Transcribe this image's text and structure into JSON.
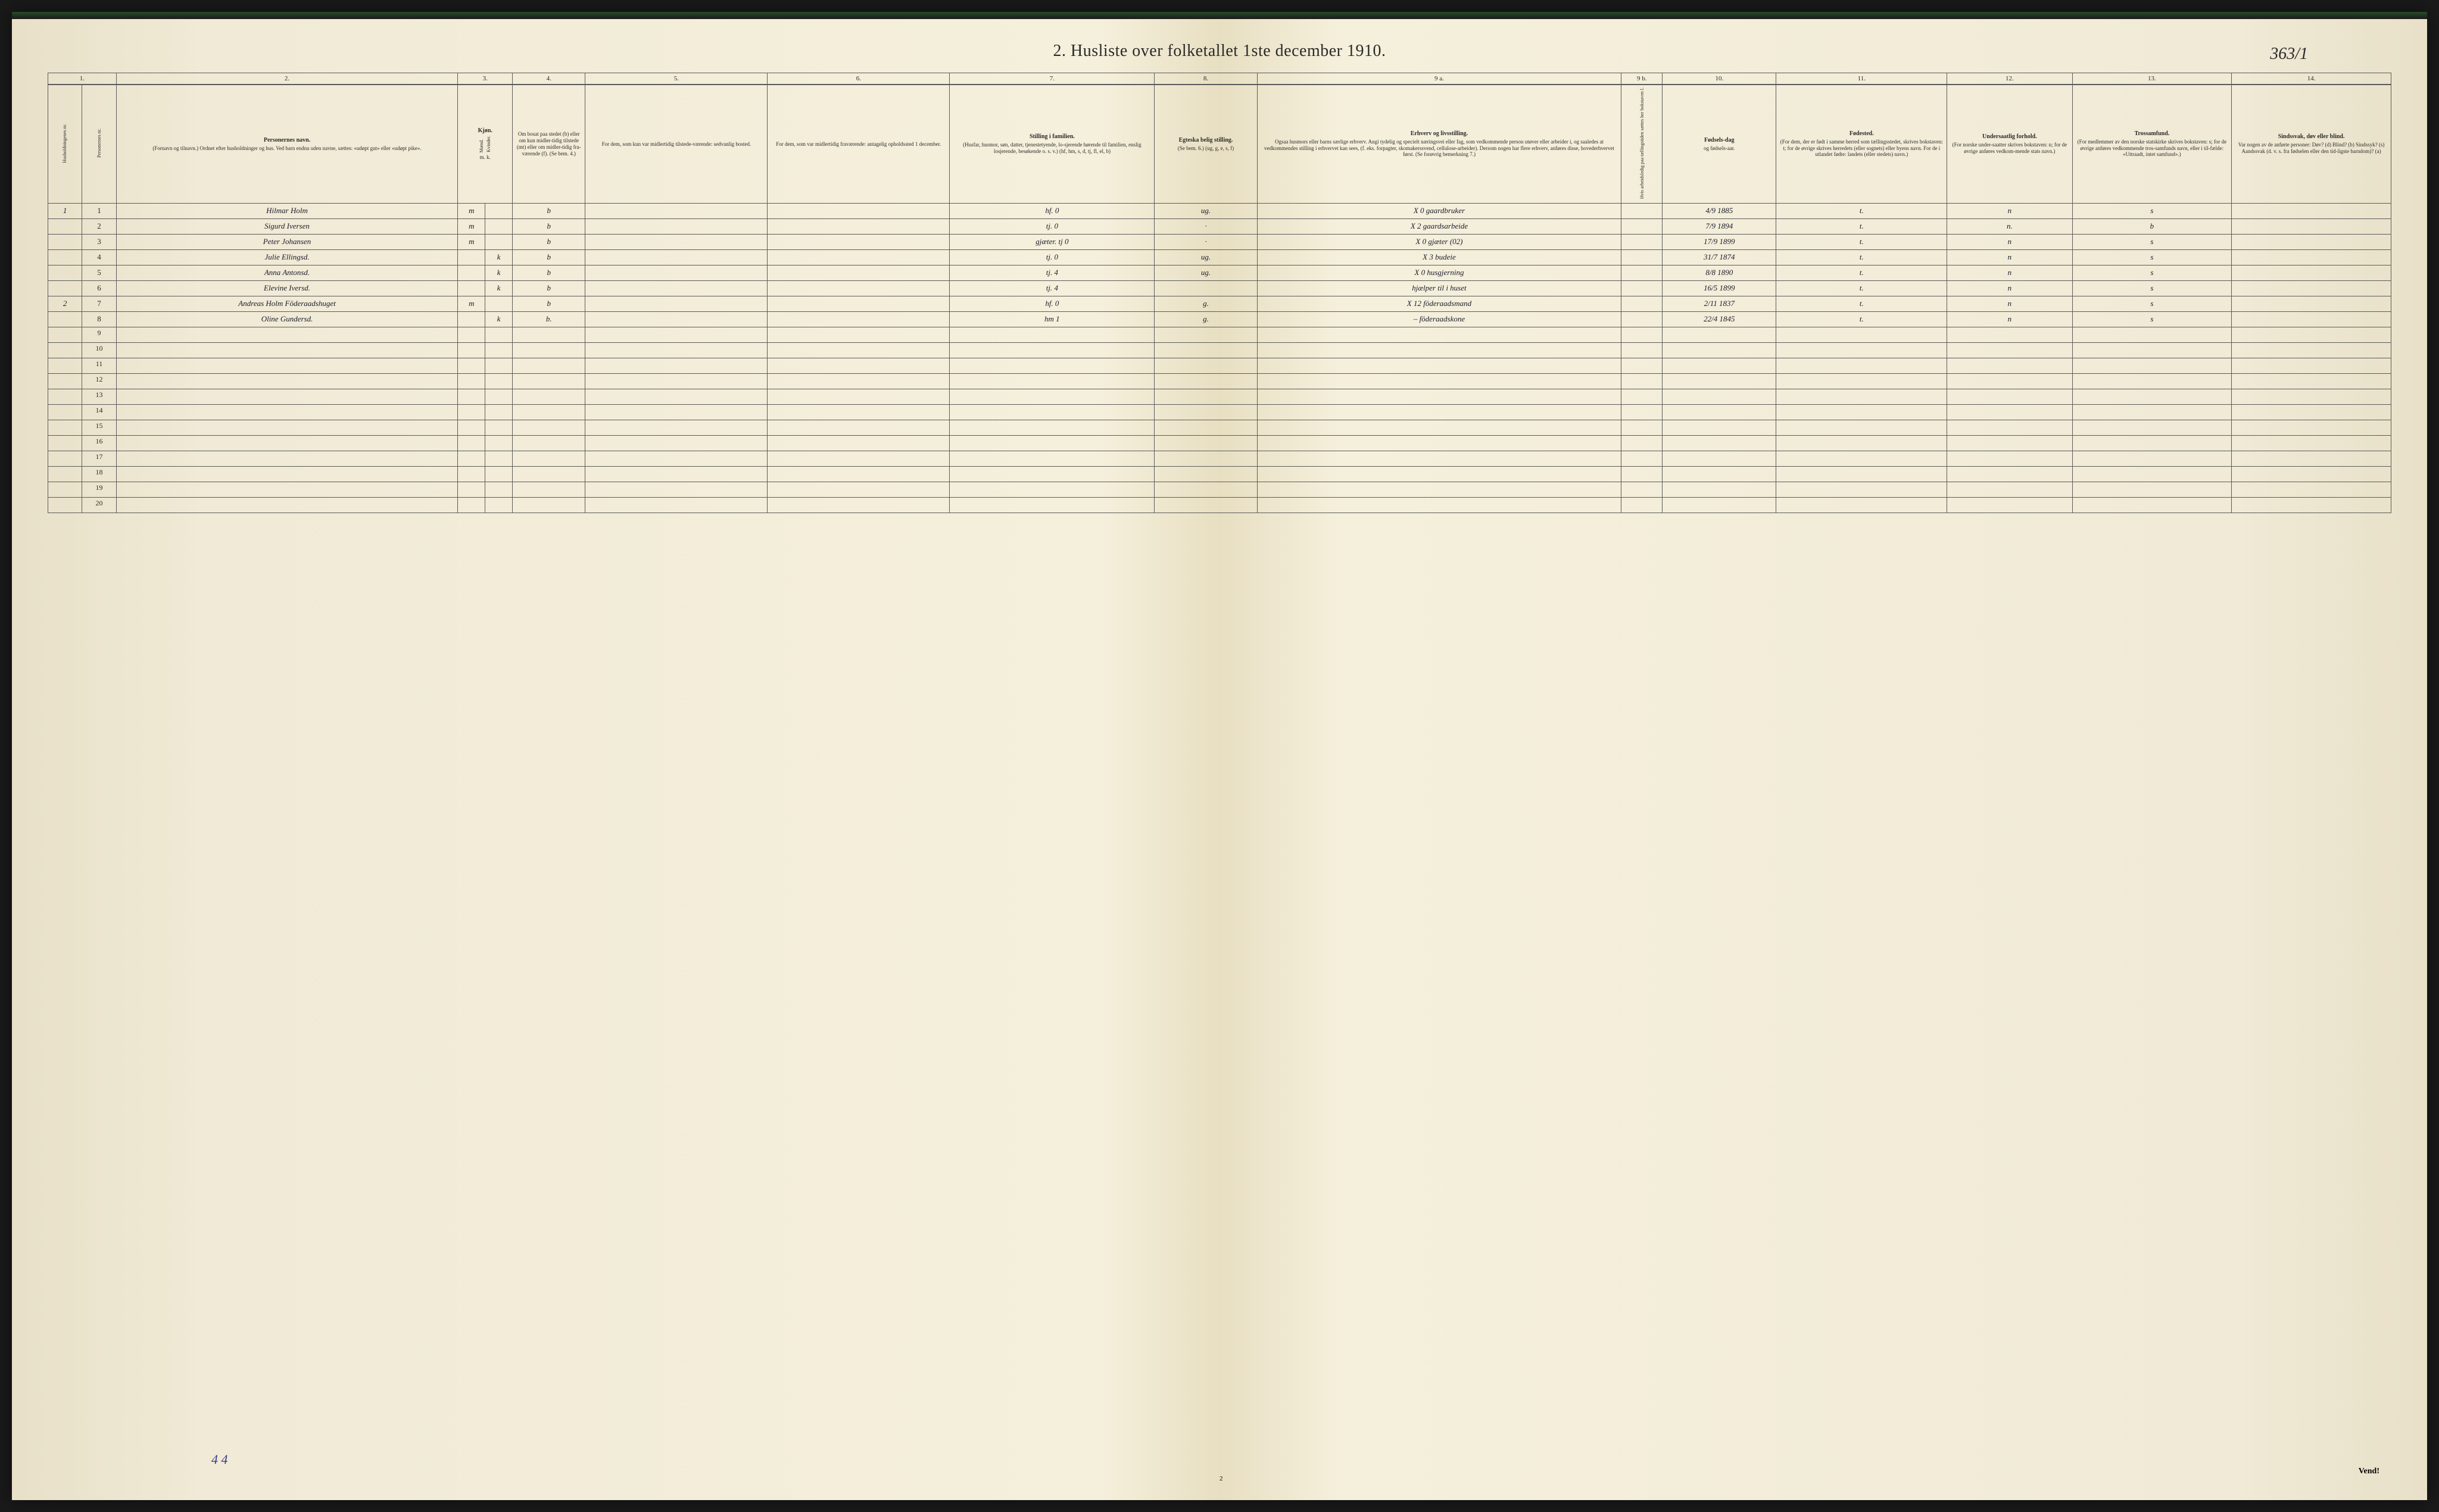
{
  "corner_note": "363/1",
  "title": "2.   Husliste over folketallet 1ste december 1910.",
  "col_numbers": [
    "1.",
    "",
    "2.",
    "3.",
    "4.",
    "5.",
    "6.",
    "7.",
    "8.",
    "9 a.",
    "9 b.",
    "10.",
    "11.",
    "12.",
    "13.",
    "14."
  ],
  "headers": {
    "c1": "Husholdningenes nr.",
    "c1b": "Personernes nr.",
    "c2_bold": "Personernes navn.",
    "c2": "(Fornavn og tilnavn.)\nOrdnet efter husholdninger og hus.\nVed barn endnu uden navne, sættes: «udøpt gut» eller «udøpt pike».",
    "c3_bold": "Kjøn.",
    "c3a": "Mænd.",
    "c3b": "Kvinder.",
    "c3_foot": "m. k.",
    "c4": "Om bosat paa stedet (b) eller om kun midler-tidig tilstede (mt) eller om midler-tidig fra-værende (f).\n(Se bem. 4.)",
    "c5": "For dem, som kun var\nmidlertidig tilstede-værende:\nsedvanlig bosted.",
    "c6": "For dem, som var\nmidlertidig fraværende:\nantagelig opholdssted 1 december.",
    "c7_bold": "Stilling i familien.",
    "c7": "(Husfar, husmor, søn, datter, tjenestetyende, lo-sjerende hørende til familien, enslig losjerende, besøkende o. s. v.)\n(hf, hm, s, d, tj, fl, el, b)",
    "c8_bold": "Egteska\nbelig\nstilling.",
    "c8": "(Se bem. 6.)\n(ug, g, e, s, f)",
    "c9a_bold": "Erhverv og livsstilling.",
    "c9a": "Ogsaa husmors eller barns særlige erhverv.\nAngi tydelig og specielt næringsvei eller fag, som vedkommende person utøver eller arbeider i, og saaledes at vedkommendes stilling i erhvervet kan sees, (f. eks. forpagter, skomakerssvend, cellulose-arbeider). Dersom nogen har flere erhverv, anføres disse, hovederhvervet først.\n(Se forøvrig bemerkning 7.)",
    "c9b": "Hvis arbeidsledig paa tællingstiden sættes her bokstaven l.",
    "c10_bold": "Fødsels-dag",
    "c10": "og fødsels-aar.",
    "c11_bold": "Fødested.",
    "c11": "(For dem, der er født i samme herred som tællingsstedet, skrives bokstaven: t;\nfor de øvrige skrives herredets (eller sognets) eller byens navn.\nFor de i utlandet fødte: landets (eller stedets) navn.)",
    "c12_bold": "Undersaatlig forhold.",
    "c12": "(For norske under-saatter skrives bokstaven: n;\nfor de øvrige anføres vedkom-mende stats navn.)",
    "c13_bold": "Trossamfund.",
    "c13": "(For medlemmer av den norske statskirke skrives bokstaven: s;\nfor de øvrige anføres vedkommende tros-samfunds navn, eller i til-fælde: «Uttraadt, intet samfund».)",
    "c14_bold": "Sindssvak, døv eller blind.",
    "c14": "Var nogen av de anførte personer:\nDøv?        (d)\nBlind?      (b)\nSindssyk? (s)\nAandssvak (d. v. s. fra fødselen eller den tid-ligste barndom)?  (a)"
  },
  "col_widths": [
    "1.5%",
    "1.5%",
    "15%",
    "1.2%",
    "1.2%",
    "3.2%",
    "8%",
    "8%",
    "9%",
    "4.5%",
    "16%",
    "1.8%",
    "5%",
    "7.5%",
    "5.5%",
    "7%",
    "7%"
  ],
  "rows": [
    {
      "hh": "1",
      "pn": "1",
      "name": "Hilmar Holm",
      "sex_m": "m",
      "sex_k": "",
      "stat": "b",
      "c5": "",
      "c6": "",
      "fam": "hf.",
      "famx": "0",
      "mar": "ug.",
      "occ": "X 0 gaardbruker",
      "l": "",
      "dob": "4/9 1885",
      "born": "t.",
      "nat": "n",
      "rel": "s",
      "dis": ""
    },
    {
      "hh": "",
      "pn": "2",
      "name": "Sigurd Iversen",
      "sex_m": "m",
      "sex_k": "",
      "stat": "b",
      "c5": "",
      "c6": "",
      "fam": "tj.",
      "famx": "0",
      "mar": "·",
      "occ": "X 2 gaardsarbeide",
      "l": "",
      "dob": "7/9 1894",
      "born": "t.",
      "nat": "n.",
      "rel": "b",
      "dis": ""
    },
    {
      "hh": "",
      "pn": "3",
      "name": "Peter Johansen",
      "sex_m": "m",
      "sex_k": "",
      "stat": "b",
      "c5": "",
      "c6": "",
      "fam": "gjæter. tj 0",
      "famx": "",
      "mar": "·",
      "occ": "X 0     gjæter   (02)",
      "l": "",
      "dob": "17/9 1899",
      "born": "t.",
      "nat": "n",
      "rel": "s",
      "dis": ""
    },
    {
      "hh": "",
      "pn": "4",
      "name": "Julie Ellingsd.",
      "sex_m": "",
      "sex_k": "k",
      "stat": "b",
      "c5": "",
      "c6": "",
      "fam": "tj.",
      "famx": "0",
      "mar": "ug.",
      "occ": "X 3 budeie",
      "l": "",
      "dob": "31/7 1874",
      "born": "t.",
      "nat": "n",
      "rel": "s",
      "dis": ""
    },
    {
      "hh": "",
      "pn": "5",
      "name": "Anna Antonsd.",
      "sex_m": "",
      "sex_k": "k",
      "stat": "b",
      "c5": "",
      "c6": "",
      "fam": "tj.",
      "famx": "4",
      "mar": "ug.",
      "occ": "X 0 husgjerning",
      "l": "",
      "dob": "8/8 1890",
      "born": "t.",
      "nat": "n",
      "rel": "s",
      "dis": ""
    },
    {
      "hh": "",
      "pn": "6",
      "name": "Elevine Iversd.",
      "sex_m": "",
      "sex_k": "k",
      "stat": "b",
      "c5": "",
      "c6": "",
      "fam": "tj.",
      "famx": "4",
      "mar": "",
      "occ": "hjælper til i huset",
      "l": "",
      "dob": "16/5 1899",
      "born": "t.",
      "nat": "n",
      "rel": "s",
      "dis": ""
    },
    {
      "hh": "2",
      "pn": "7",
      "name": "Andreas Holm  Föderaadshuget",
      "sex_m": "m",
      "sex_k": "",
      "stat": "b",
      "c5": "",
      "c6": "",
      "fam": "hf.",
      "famx": "0",
      "mar": "g.",
      "occ": "X 12 föderaadsmand",
      "l": "",
      "dob": "2/11 1837",
      "born": "t.",
      "nat": "n",
      "rel": "s",
      "dis": ""
    },
    {
      "hh": "",
      "pn": "8",
      "name": "Oline Gundersd.",
      "sex_m": "",
      "sex_k": "k",
      "stat": "b.",
      "c5": "",
      "c6": "",
      "fam": "hm",
      "famx": "1",
      "mar": "g.",
      "occ": "– föderaadskone",
      "l": "",
      "dob": "22/4 1845",
      "born": "t.",
      "nat": "n",
      "rel": "s",
      "dis": ""
    }
  ],
  "empty_row_start": 9,
  "empty_row_end": 20,
  "bottom_tally": "4 4",
  "footer_page": "2",
  "footer_vend": "Vend!",
  "colors": {
    "paper": "#f0ead6",
    "ink": "#2a2a2a",
    "hw_ink": "#1a1a2a",
    "border": "#5a5a5a",
    "purple_ink": "#3a3a8a"
  }
}
